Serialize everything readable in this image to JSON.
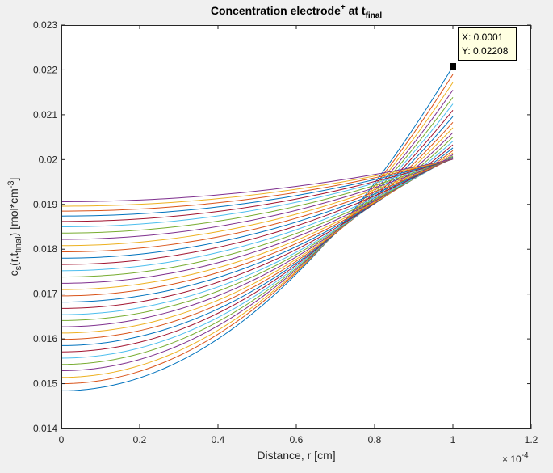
{
  "chart_data": {
    "type": "line",
    "title": {
      "main": "Concentration electrode",
      "sup": "+",
      "mid": " at t",
      "sub": "final"
    },
    "xlabel": "Distance, r [cm]",
    "ylabel": {
      "p1": "c",
      "sub1": "s",
      "p2": "(r,t",
      "sub2": "final",
      "p3": ") [mol*cm",
      "sup1": "-3",
      "p4": "]"
    },
    "xlim": [
      0,
      1.2
    ],
    "ylim": [
      0.014,
      0.023
    ],
    "x_exponent_label": "× 10",
    "x_exponent_power": "-4",
    "x_tick_values": [
      0,
      0.2,
      0.4,
      0.6,
      0.8,
      1,
      1.2
    ],
    "x_tick_labels": [
      "0",
      "0.2",
      "0.4",
      "0.6",
      "0.8",
      "1",
      "1.2"
    ],
    "y_tick_values": [
      0.014,
      0.015,
      0.016,
      0.017,
      0.018,
      0.019,
      0.02,
      0.021,
      0.022,
      0.023
    ],
    "y_tick_labels": [
      "0.014",
      "0.015",
      "0.016",
      "0.017",
      "0.018",
      "0.019",
      "0.02",
      "0.021",
      "0.022",
      "0.023"
    ],
    "grid": false,
    "legend": "none",
    "x_range": [
      0,
      1
    ],
    "series_colors": [
      "#0072bd",
      "#d95319",
      "#edb120",
      "#7e2f8e",
      "#77ac30",
      "#4dbeee",
      "#a2142f"
    ],
    "series": [
      {
        "c0": 0.01484,
        "c1": 0.02208
      },
      {
        "c0": 0.015,
        "c1": 0.0219
      },
      {
        "c0": 0.01514,
        "c1": 0.02172
      },
      {
        "c0": 0.01529,
        "c1": 0.02155
      },
      {
        "c0": 0.01543,
        "c1": 0.02139
      },
      {
        "c0": 0.01557,
        "c1": 0.02124
      },
      {
        "c0": 0.01571,
        "c1": 0.0211
      },
      {
        "c0": 0.01585,
        "c1": 0.02096
      },
      {
        "c0": 0.01599,
        "c1": 0.02083
      },
      {
        "c0": 0.01613,
        "c1": 0.02071
      },
      {
        "c0": 0.01627,
        "c1": 0.0206
      },
      {
        "c0": 0.01641,
        "c1": 0.0205
      },
      {
        "c0": 0.01654,
        "c1": 0.02041
      },
      {
        "c0": 0.01668,
        "c1": 0.02033
      },
      {
        "c0": 0.01682,
        "c1": 0.02026
      },
      {
        "c0": 0.01696,
        "c1": 0.0202
      },
      {
        "c0": 0.0171,
        "c1": 0.02015
      },
      {
        "c0": 0.01724,
        "c1": 0.02011
      },
      {
        "c0": 0.01738,
        "c1": 0.02008
      },
      {
        "c0": 0.01752,
        "c1": 0.02006
      },
      {
        "c0": 0.01766,
        "c1": 0.02005
      },
      {
        "c0": 0.0178,
        "c1": 0.02004
      },
      {
        "c0": 0.01794,
        "c1": 0.02003
      },
      {
        "c0": 0.01808,
        "c1": 0.02003
      },
      {
        "c0": 0.01822,
        "c1": 0.02002
      },
      {
        "c0": 0.01836,
        "c1": 0.02002
      },
      {
        "c0": 0.0185,
        "c1": 0.02002
      },
      {
        "c0": 0.01862,
        "c1": 0.02001
      },
      {
        "c0": 0.01874,
        "c1": 0.02001
      },
      {
        "c0": 0.01885,
        "c1": 0.02001
      },
      {
        "c0": 0.01896,
        "c1": 0.02001
      },
      {
        "c0": 0.01906,
        "c1": 0.02001
      }
    ],
    "datatip": {
      "x": 0.0001,
      "y": 0.02208,
      "x_text": "X: 0.0001",
      "y_text": "Y: 0.02208"
    }
  }
}
